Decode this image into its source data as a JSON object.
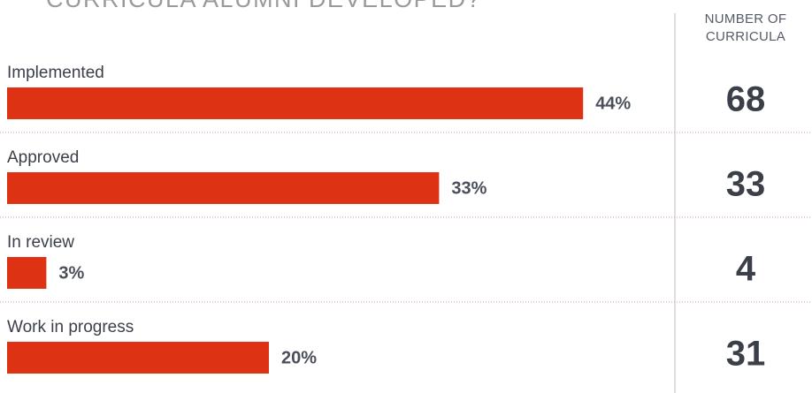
{
  "chart_data": {
    "type": "bar",
    "orientation": "horizontal",
    "title": "CURRICULA ALUMNI DEVELOPED?",
    "categories": [
      "Implemented",
      "Approved",
      "In review",
      "Work in progress"
    ],
    "values": [
      44,
      33,
      3,
      20
    ],
    "value_labels": [
      "44%",
      "33%",
      "3%",
      "20%"
    ],
    "color": "#dd3214",
    "column_header": "NUMBER OF CURRICULA",
    "counts": [
      68,
      33,
      4,
      31
    ]
  }
}
